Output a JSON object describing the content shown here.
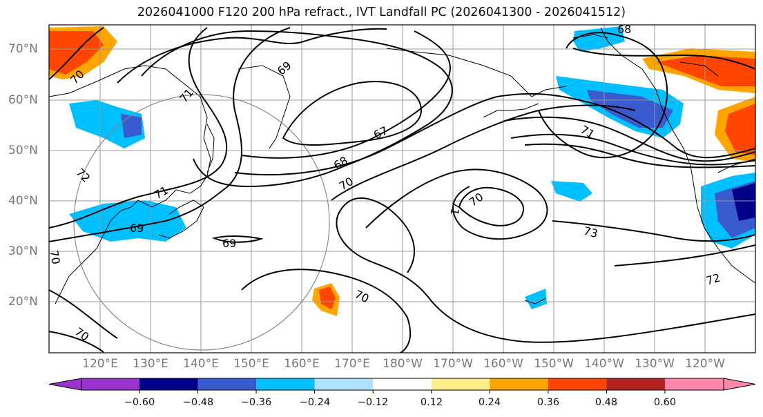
{
  "title": "2026041000 F120 200 hPa refract., IVT Landfall PC (2026041300 - 2026041512)",
  "lat_labels": [
    "70°N",
    "60°N",
    "50°N",
    "40°N",
    "30°N",
    "20°N"
  ],
  "lon_labels": [
    "120°E",
    "130°E",
    "140°E",
    "150°E",
    "160°E",
    "170°E",
    "180°W",
    "170°W",
    "160°W",
    "150°W",
    "140°W",
    "130°W",
    "120°W"
  ],
  "contour_labels": [
    "68",
    "70",
    "71",
    "69",
    "67",
    "68",
    "70",
    "72",
    "71",
    "70",
    "71",
    "71",
    "73",
    "72",
    "70",
    "69",
    "69",
    "70",
    "70"
  ],
  "colorbar": {
    "ticks": [
      "−0.60",
      "−0.48",
      "−0.36",
      "−0.24",
      "−0.12",
      "0.12",
      "0.24",
      "0.36",
      "0.48",
      "0.60"
    ],
    "colors": [
      "#9a32cd",
      "#00008b",
      "#3a5bd0",
      "#00bfff",
      "#b0e2ff",
      "#ffffff",
      "#ffec8b",
      "#ffa500",
      "#ff4500",
      "#b22222",
      "#ff88aa"
    ]
  }
}
